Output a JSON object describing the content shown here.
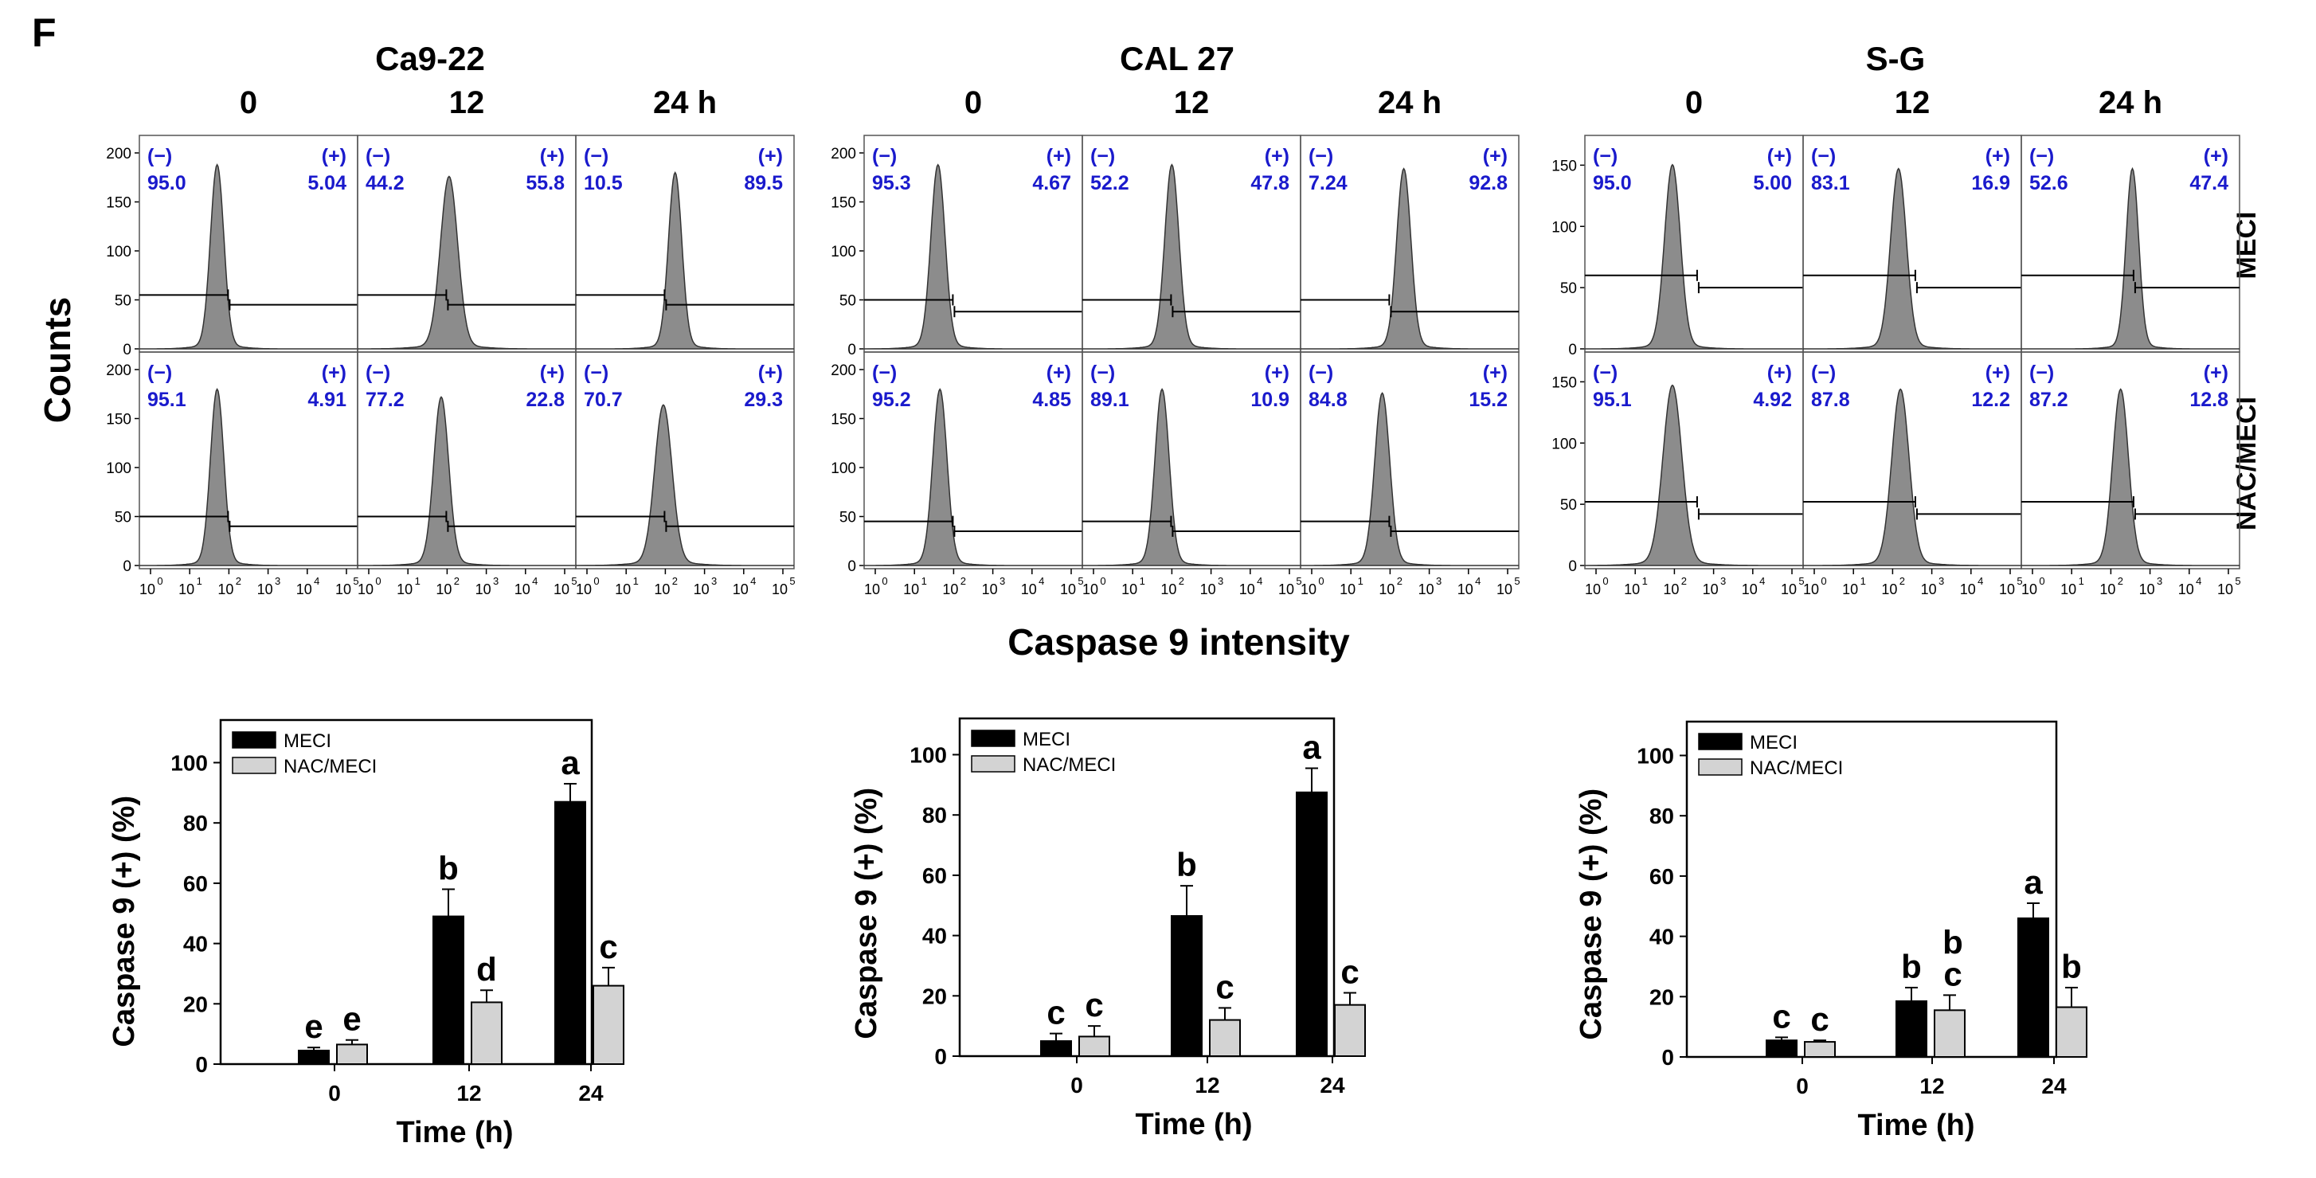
{
  "panel_label": "F",
  "y_title": "Counts",
  "x_title": "Caspase 9 intensity",
  "row_labels": [
    "MECI",
    "NAC/MECI"
  ],
  "neg_label": "(−)",
  "pos_label": "(+)",
  "x_ticks": [
    "10",
    "10",
    "10",
    "10",
    "10",
    "10"
  ],
  "x_exponents": [
    "0",
    "1",
    "2",
    "3",
    "4",
    "5"
  ],
  "colors": {
    "hist_fill": "#8c8c8c",
    "pct_text": "#1a1acc",
    "meci_bar": "#000000",
    "nac_bar": "#d3d3d3"
  },
  "chart_data": [
    {
      "type": "histogram",
      "title": "Ca9-22",
      "timepoints": [
        "0",
        "12",
        "24 h"
      ],
      "y_ticks": [
        "0",
        "50",
        "100",
        "150",
        "200"
      ],
      "y_max": 200,
      "rows": [
        {
          "label": "MECI",
          "panels": [
            {
              "neg": "95.0",
              "pos": "5.04",
              "peak_log": 1.7,
              "width": 0.17,
              "height": 0.92,
              "gate_log": 2.0,
              "gate_left": 55,
              "gate_right": 45
            },
            {
              "neg": "44.2",
              "pos": "55.8",
              "peak_log": 2.05,
              "width": 0.22,
              "height": 0.86,
              "gate_log": 2.0,
              "gate_left": 55,
              "gate_right": 45
            },
            {
              "neg": "10.5",
              "pos": "89.5",
              "peak_log": 2.25,
              "width": 0.17,
              "height": 0.88,
              "gate_log": 2.0,
              "gate_left": 55,
              "gate_right": 45
            }
          ]
        },
        {
          "label": "NAC/MECI",
          "panels": [
            {
              "neg": "95.1",
              "pos": "4.91",
              "peak_log": 1.7,
              "width": 0.17,
              "height": 0.88,
              "gate_log": 2.0,
              "gate_left": 50,
              "gate_right": 40
            },
            {
              "neg": "77.2",
              "pos": "22.8",
              "peak_log": 1.85,
              "width": 0.19,
              "height": 0.84,
              "gate_log": 2.0,
              "gate_left": 50,
              "gate_right": 40
            },
            {
              "neg": "70.7",
              "pos": "29.3",
              "peak_log": 1.95,
              "width": 0.22,
              "height": 0.8,
              "gate_log": 2.0,
              "gate_left": 50,
              "gate_right": 40
            }
          ]
        }
      ]
    },
    {
      "type": "histogram",
      "title": "CAL 27",
      "timepoints": [
        "0",
        "12",
        "24 h"
      ],
      "y_ticks": [
        "0",
        "50",
        "100",
        "150",
        "200"
      ],
      "y_max": 200,
      "rows": [
        {
          "label": "MECI",
          "panels": [
            {
              "neg": "95.3",
              "pos": "4.67",
              "peak_log": 1.6,
              "width": 0.18,
              "height": 0.92,
              "gate_log": 2.0,
              "gate_left": 50,
              "gate_right": 38
            },
            {
              "neg": "52.2",
              "pos": "47.8",
              "peak_log": 2.0,
              "width": 0.18,
              "height": 0.92,
              "gate_log": 2.0,
              "gate_left": 50,
              "gate_right": 38
            },
            {
              "neg": "7.24",
              "pos": "92.8",
              "peak_log": 2.35,
              "width": 0.18,
              "height": 0.9,
              "gate_log": 2.0,
              "gate_left": 50,
              "gate_right": 38
            }
          ]
        },
        {
          "label": "NAC/MECI",
          "panels": [
            {
              "neg": "95.2",
              "pos": "4.85",
              "peak_log": 1.65,
              "width": 0.18,
              "height": 0.88,
              "gate_log": 2.0,
              "gate_left": 45,
              "gate_right": 35
            },
            {
              "neg": "89.1",
              "pos": "10.9",
              "peak_log": 1.75,
              "width": 0.18,
              "height": 0.88,
              "gate_log": 2.0,
              "gate_left": 45,
              "gate_right": 35
            },
            {
              "neg": "84.8",
              "pos": "15.2",
              "peak_log": 1.8,
              "width": 0.19,
              "height": 0.86,
              "gate_log": 2.0,
              "gate_left": 45,
              "gate_right": 35
            }
          ]
        }
      ]
    },
    {
      "type": "histogram",
      "title": "S-G",
      "timepoints": [
        "0",
        "12",
        "24 h"
      ],
      "y_ticks": [
        "0",
        "50",
        "100",
        "150"
      ],
      "y_max": 160,
      "rows": [
        {
          "label": "MECI",
          "panels": [
            {
              "neg": "95.0",
              "pos": "5.00",
              "peak_log": 1.95,
              "width": 0.2,
              "height": 0.92,
              "gate_log": 2.6,
              "gate_left": 60,
              "gate_right": 50
            },
            {
              "neg": "83.1",
              "pos": "16.9",
              "peak_log": 2.15,
              "width": 0.2,
              "height": 0.9,
              "gate_log": 2.6,
              "gate_left": 60,
              "gate_right": 50
            },
            {
              "neg": "52.6",
              "pos": "47.4",
              "peak_log": 2.55,
              "width": 0.16,
              "height": 0.9,
              "gate_log": 2.6,
              "gate_left": 60,
              "gate_right": 50
            }
          ]
        },
        {
          "label": "NAC/MECI",
          "panels": [
            {
              "neg": "95.1",
              "pos": "4.92",
              "peak_log": 1.95,
              "width": 0.24,
              "height": 0.9,
              "gate_log": 2.6,
              "gate_left": 52,
              "gate_right": 42
            },
            {
              "neg": "87.8",
              "pos": "12.2",
              "peak_log": 2.2,
              "width": 0.22,
              "height": 0.88,
              "gate_log": 2.6,
              "gate_left": 52,
              "gate_right": 42
            },
            {
              "neg": "87.2",
              "pos": "12.8",
              "peak_log": 2.25,
              "width": 0.2,
              "height": 0.88,
              "gate_log": 2.6,
              "gate_left": 52,
              "gate_right": 42
            }
          ]
        }
      ]
    },
    {
      "type": "bar",
      "cell_line": "Ca9-22",
      "categories": [
        "0",
        "12",
        "24"
      ],
      "xlabel": "Time (h)",
      "ylabel": "Caspase 9 (+) (%)",
      "ylim": [
        0,
        110
      ],
      "y_ticks": [
        "0",
        "20",
        "40",
        "60",
        "80",
        "100"
      ],
      "legend": [
        "MECI",
        "NAC/MECI"
      ],
      "legend_position": "top-left",
      "series": [
        {
          "name": "MECI",
          "values": [
            4.5,
            49,
            87
          ],
          "errors": [
            1,
            9,
            6
          ],
          "letters": [
            "e",
            "b",
            "a"
          ]
        },
        {
          "name": "NAC/MECI",
          "values": [
            6.5,
            20.5,
            26
          ],
          "errors": [
            1.5,
            4,
            6
          ],
          "letters": [
            "e",
            "d",
            "c"
          ]
        }
      ]
    },
    {
      "type": "bar",
      "cell_line": "CAL 27",
      "categories": [
        "0",
        "12",
        "24"
      ],
      "xlabel": "Time (h)",
      "ylabel": "Caspase 9 (+) (%)",
      "ylim": [
        0,
        110
      ],
      "y_ticks": [
        "0",
        "20",
        "40",
        "60",
        "80",
        "100"
      ],
      "legend": [
        "MECI",
        "NAC/MECI"
      ],
      "legend_position": "top-left",
      "series": [
        {
          "name": "MECI",
          "values": [
            5,
            46.5,
            87.5
          ],
          "errors": [
            2.5,
            10,
            8
          ],
          "letters": [
            "c",
            "b",
            "a"
          ]
        },
        {
          "name": "NAC/MECI",
          "values": [
            6.5,
            12,
            17
          ],
          "errors": [
            3.5,
            4,
            4
          ],
          "letters": [
            "c",
            "c",
            "c"
          ]
        }
      ]
    },
    {
      "type": "bar",
      "cell_line": "S-G",
      "categories": [
        "0",
        "12",
        "24"
      ],
      "xlabel": "Time (h)",
      "ylabel": "Caspase 9 (+) (%)",
      "ylim": [
        0,
        110
      ],
      "y_ticks": [
        "0",
        "20",
        "40",
        "60",
        "80",
        "100"
      ],
      "legend": [
        "MECI",
        "NAC/MECI"
      ],
      "legend_position": "top-left",
      "series": [
        {
          "name": "MECI",
          "values": [
            5.5,
            18.5,
            46
          ],
          "errors": [
            1,
            4.5,
            5
          ],
          "letters": [
            "c",
            "b",
            "a"
          ]
        },
        {
          "name": "NAC/MECI",
          "values": [
            5,
            15.5,
            16.5
          ],
          "errors": [
            0.5,
            5,
            6.5
          ],
          "letters": [
            "c",
            "b c",
            "b"
          ]
        }
      ]
    }
  ]
}
